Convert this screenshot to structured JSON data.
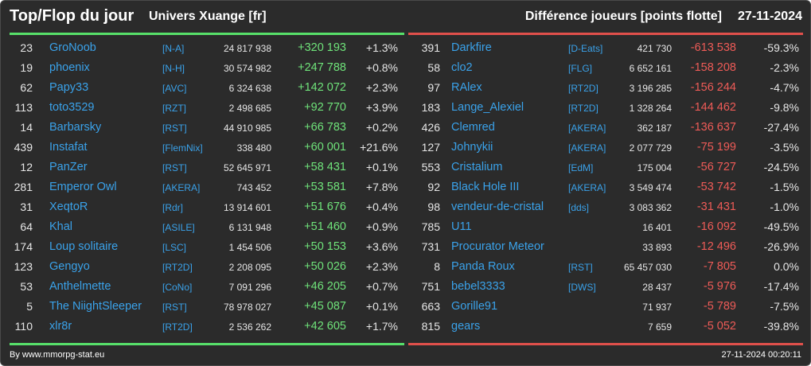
{
  "header": {
    "title": "Top/Flop du jour",
    "universe": "Univers Xuange [fr]",
    "subtitle": "Différence joueurs [points flotte]",
    "date": "27-11-2024"
  },
  "colors": {
    "accent_positive": "#57e06a",
    "accent_negative": "#e0504b",
    "link": "#3aa2ea",
    "background": "#2b2b2b"
  },
  "top": [
    {
      "rank": "23",
      "name": "GroNoob",
      "alliance": "[N-A]",
      "points": "24 817 938",
      "diff": "+320 193",
      "pct": "+1.3%"
    },
    {
      "rank": "19",
      "name": "phoenix",
      "alliance": "[N-H]",
      "points": "30 574 982",
      "diff": "+247 788",
      "pct": "+0.8%"
    },
    {
      "rank": "62",
      "name": "Papy33",
      "alliance": "[AVC]",
      "points": "6 324 638",
      "diff": "+142 072",
      "pct": "+2.3%"
    },
    {
      "rank": "113",
      "name": "toto3529",
      "alliance": "[RZT]",
      "points": "2 498 685",
      "diff": "+92 770",
      "pct": "+3.9%"
    },
    {
      "rank": "14",
      "name": "Barbarsky",
      "alliance": "[RST]",
      "points": "44 910 985",
      "diff": "+66 783",
      "pct": "+0.2%"
    },
    {
      "rank": "439",
      "name": "Instafat",
      "alliance": "[FlemNix]",
      "points": "338 480",
      "diff": "+60 001",
      "pct": "+21.6%"
    },
    {
      "rank": "12",
      "name": "PanZer",
      "alliance": "[RST]",
      "points": "52 645 971",
      "diff": "+58 431",
      "pct": "+0.1%"
    },
    {
      "rank": "281",
      "name": "Emperor Owl",
      "alliance": "[AKERA]",
      "points": "743 452",
      "diff": "+53 581",
      "pct": "+7.8%"
    },
    {
      "rank": "31",
      "name": "XeqtoR",
      "alliance": "[Rdr]",
      "points": "13 914 601",
      "diff": "+51 676",
      "pct": "+0.4%"
    },
    {
      "rank": "64",
      "name": "Khal",
      "alliance": "[ASILE]",
      "points": "6 131 948",
      "diff": "+51 460",
      "pct": "+0.9%"
    },
    {
      "rank": "174",
      "name": "Loup solitaire",
      "alliance": "[LSC]",
      "points": "1 454 506",
      "diff": "+50 153",
      "pct": "+3.6%"
    },
    {
      "rank": "123",
      "name": "Gengyo",
      "alliance": "[RT2D]",
      "points": "2 208 095",
      "diff": "+50 026",
      "pct": "+2.3%"
    },
    {
      "rank": "53",
      "name": "Anthelmette",
      "alliance": "[CoNo]",
      "points": "7 091 296",
      "diff": "+46 205",
      "pct": "+0.7%"
    },
    {
      "rank": "5",
      "name": "The NiightSleeper",
      "alliance": "[RST]",
      "points": "78 978 027",
      "diff": "+45 087",
      "pct": "+0.1%"
    },
    {
      "rank": "110",
      "name": "xlr8r",
      "alliance": "[RT2D]",
      "points": "2 536 262",
      "diff": "+42 605",
      "pct": "+1.7%"
    }
  ],
  "flop": [
    {
      "rank": "391",
      "name": "Darkfire",
      "alliance": "[D-Eats]",
      "points": "421 730",
      "diff": "-613 538",
      "pct": "-59.3%"
    },
    {
      "rank": "58",
      "name": "clo2",
      "alliance": "[FLG]",
      "points": "6 652 161",
      "diff": "-158 208",
      "pct": "-2.3%"
    },
    {
      "rank": "97",
      "name": "RAlex",
      "alliance": "[RT2D]",
      "points": "3 196 285",
      "diff": "-156 244",
      "pct": "-4.7%"
    },
    {
      "rank": "183",
      "name": "Lange_Alexiel",
      "alliance": "[RT2D]",
      "points": "1 328 264",
      "diff": "-144 462",
      "pct": "-9.8%"
    },
    {
      "rank": "426",
      "name": "Clemred",
      "alliance": "[AKERA]",
      "points": "362 187",
      "diff": "-136 637",
      "pct": "-27.4%"
    },
    {
      "rank": "127",
      "name": "Johnykii",
      "alliance": "[AKERA]",
      "points": "2 077 729",
      "diff": "-75 199",
      "pct": "-3.5%"
    },
    {
      "rank": "553",
      "name": "Cristalium",
      "alliance": "[EdM]",
      "points": "175 004",
      "diff": "-56 727",
      "pct": "-24.5%"
    },
    {
      "rank": "92",
      "name": "Black Hole III",
      "alliance": "[AKERA]",
      "points": "3 549 474",
      "diff": "-53 742",
      "pct": "-1.5%"
    },
    {
      "rank": "98",
      "name": "vendeur-de-cristal",
      "alliance": "[dds]",
      "points": "3 083 362",
      "diff": "-31 431",
      "pct": "-1.0%"
    },
    {
      "rank": "785",
      "name": "U11",
      "alliance": "",
      "points": "16 401",
      "diff": "-16 092",
      "pct": "-49.5%"
    },
    {
      "rank": "731",
      "name": "Procurator Meteor",
      "alliance": "",
      "points": "33 893",
      "diff": "-12 496",
      "pct": "-26.9%"
    },
    {
      "rank": "8",
      "name": "Panda Roux",
      "alliance": "[RST]",
      "points": "65 457 030",
      "diff": "-7 805",
      "pct": "0.0%"
    },
    {
      "rank": "751",
      "name": "bebel3333",
      "alliance": "[DWS]",
      "points": "28 437",
      "diff": "-5 976",
      "pct": "-17.4%"
    },
    {
      "rank": "663",
      "name": "Gorille91",
      "alliance": "",
      "points": "71 937",
      "diff": "-5 789",
      "pct": "-7.5%"
    },
    {
      "rank": "815",
      "name": "gears",
      "alliance": "",
      "points": "7 659",
      "diff": "-5 052",
      "pct": "-39.8%"
    }
  ],
  "footer": {
    "credit": "By www.mmorpg-stat.eu",
    "timestamp": "27-11-2024 00:20:11"
  }
}
